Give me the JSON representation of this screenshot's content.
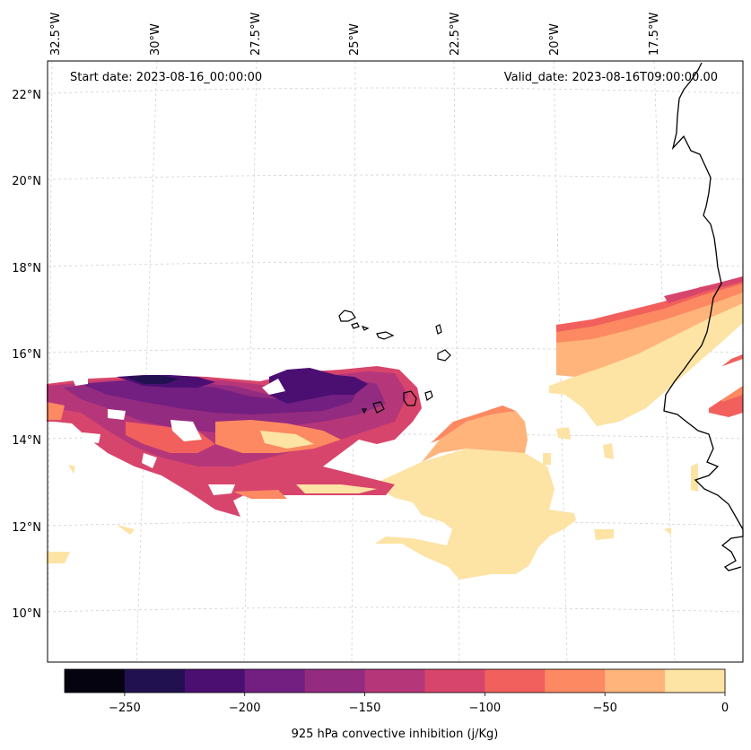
{
  "map": {
    "start_date": "Start date: 2023-08-16_00:00:00",
    "valid_date": "Valid_date: 2023-08-16T09:00:00.00",
    "lon_labels": [
      "32.5°W",
      "30°W",
      "27.5°W",
      "25°W",
      "22.5°W",
      "20°W",
      "17.5°W"
    ],
    "lat_labels": [
      "22°N",
      "20°N",
      "18°N",
      "16°N",
      "14°N",
      "12°N",
      "10°N"
    ]
  },
  "colorbar": {
    "label": "925 hPa convective inhibition (j/Kg)",
    "ticks": [
      "−250",
      "−200",
      "−150",
      "−100",
      "−50",
      "0"
    ],
    "min": -275,
    "max": 0,
    "step": 25,
    "colors": [
      "#05030f",
      "#221150",
      "#4b0f72",
      "#721f81",
      "#932b80",
      "#b63779",
      "#d8456c",
      "#f1605d",
      "#fc8961",
      "#feb47b",
      "#fde3a4"
    ]
  },
  "colors": {
    "coastline": "#000000",
    "gridline": "#cccccc"
  }
}
